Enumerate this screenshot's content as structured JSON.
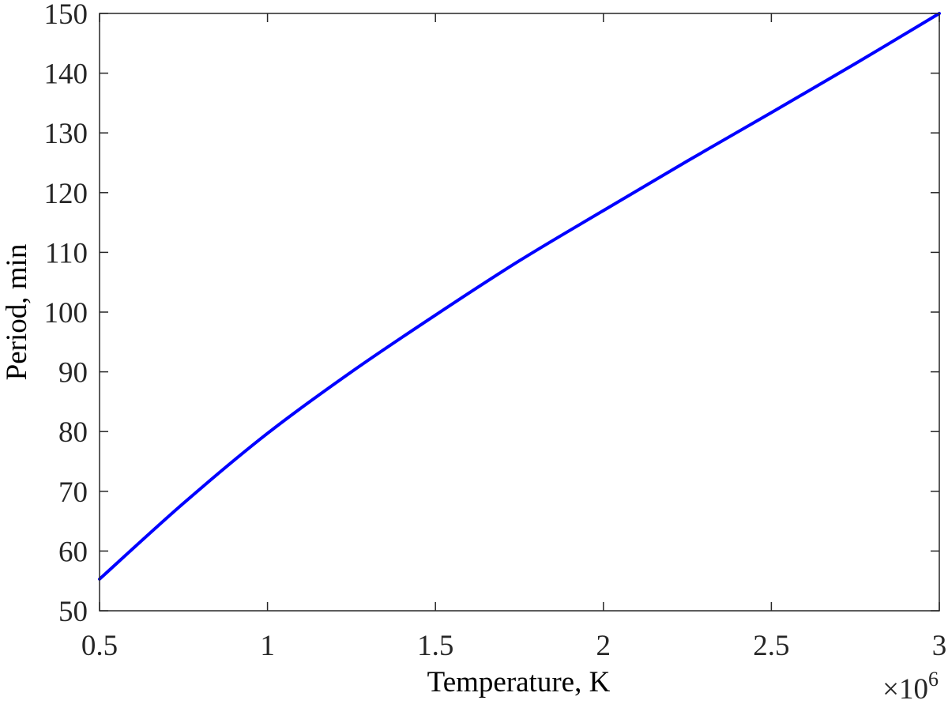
{
  "chart_data": {
    "type": "line",
    "title": "",
    "xlabel": "Temperature, K",
    "ylabel": "Period, min",
    "x_exponent_label": {
      "times": "×10",
      "power": "6"
    },
    "xlim": [
      0.5,
      3
    ],
    "ylim": [
      50,
      150
    ],
    "x_ticks": [
      0.5,
      1,
      1.5,
      2,
      2.5,
      3
    ],
    "x_tick_labels": [
      "0.5",
      "1",
      "1.5",
      "2",
      "2.5",
      "3"
    ],
    "y_ticks": [
      50,
      60,
      70,
      80,
      90,
      100,
      110,
      120,
      130,
      140,
      150
    ],
    "y_tick_labels": [
      "50",
      "60",
      "70",
      "80",
      "90",
      "100",
      "110",
      "120",
      "130",
      "140",
      "150"
    ],
    "grid": false,
    "legend": "none",
    "series": [
      {
        "color": "#0000ff",
        "x": [
          0.5,
          0.75,
          1,
          1.25,
          1.5,
          1.75,
          2,
          2.25,
          2.5,
          2.75,
          3
        ],
        "y": [
          55.3,
          68.0,
          79.7,
          90.0,
          99.5,
          108.6,
          117.0,
          125.3,
          133.4,
          141.6,
          150.0
        ]
      }
    ]
  }
}
